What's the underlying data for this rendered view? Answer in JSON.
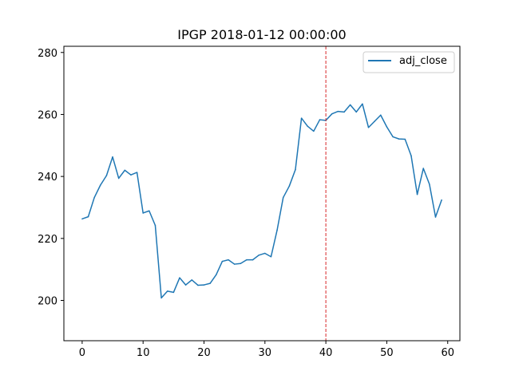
{
  "chart_data": {
    "type": "line",
    "title": "IPGP 2018-01-12 00:00:00",
    "xlabel": "",
    "ylabel": "",
    "xlim": [
      -3,
      62
    ],
    "ylim": [
      187,
      282
    ],
    "xticks": [
      0,
      10,
      20,
      30,
      40,
      50,
      60
    ],
    "yticks": [
      200,
      220,
      240,
      260,
      280
    ],
    "grid": false,
    "legend_position": "upper right",
    "series": [
      {
        "name": "adj_close",
        "color": "#1f77b4",
        "x": [
          0,
          1,
          2,
          3,
          4,
          5,
          6,
          7,
          8,
          9,
          10,
          11,
          12,
          13,
          14,
          15,
          16,
          17,
          18,
          19,
          20,
          21,
          22,
          23,
          24,
          25,
          26,
          27,
          28,
          29,
          30,
          31,
          32,
          33,
          34,
          35,
          36,
          37,
          38,
          39,
          40,
          41,
          42,
          43,
          44,
          45,
          46,
          47,
          48,
          49,
          50,
          51,
          52,
          53,
          54,
          55,
          56,
          57,
          58,
          59
        ],
        "values": [
          226.3,
          227.0,
          233.2,
          237.2,
          240.3,
          246.3,
          239.4,
          242.0,
          240.5,
          241.3,
          228.2,
          228.9,
          224.2,
          200.8,
          203.0,
          202.6,
          207.3,
          205.0,
          206.6,
          204.9,
          205.0,
          205.5,
          208.3,
          212.6,
          213.1,
          211.7,
          211.9,
          213.1,
          213.1,
          214.6,
          215.2,
          214.1,
          222.7,
          233.2,
          236.9,
          242.2,
          258.8,
          256.2,
          254.6,
          258.3,
          258.1,
          260.2,
          261.0,
          260.8,
          263.1,
          260.8,
          263.4,
          255.8,
          257.8,
          259.8,
          256.0,
          252.8,
          252.1,
          252.0,
          246.7,
          234.2,
          242.6,
          237.5,
          226.9,
          232.4
        ]
      }
    ],
    "annotations": [
      {
        "type": "vertical_line",
        "x": 40,
        "color": "#d62728",
        "style": "dashed"
      }
    ]
  }
}
